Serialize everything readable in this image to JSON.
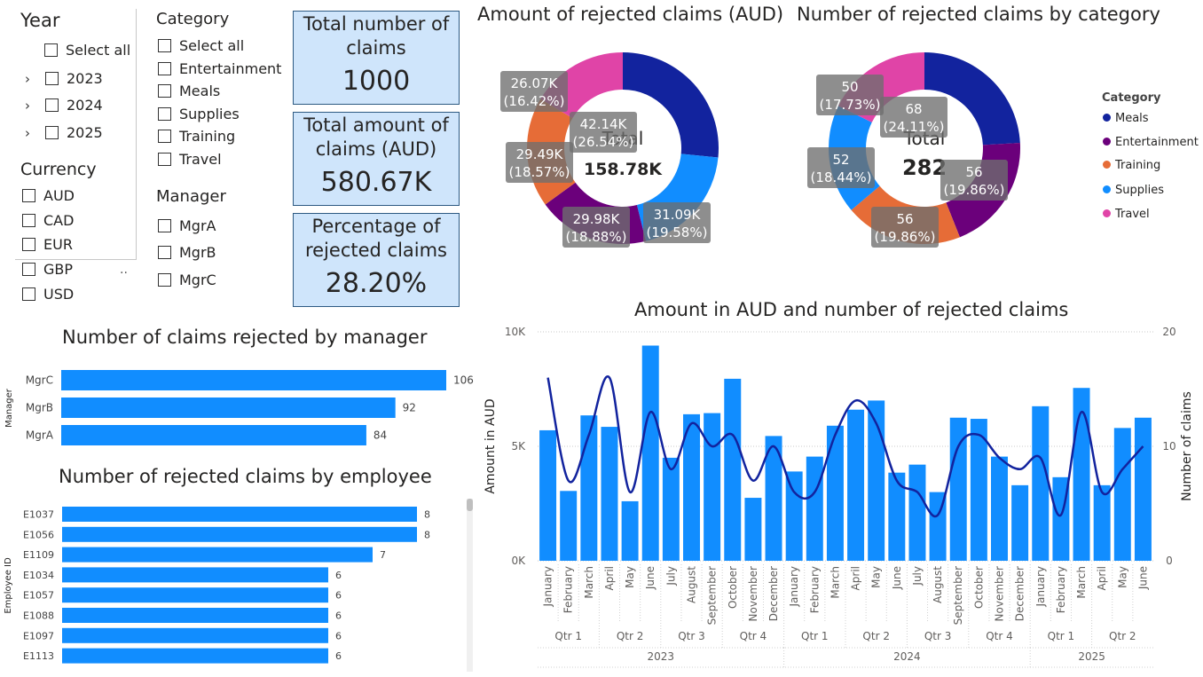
{
  "year_slicer": {
    "title": "Year",
    "select_all": "Select all",
    "items": [
      "2023",
      "2024",
      "2025"
    ]
  },
  "currency_slicer": {
    "title": "Currency",
    "items": [
      "AUD",
      "CAD",
      "EUR",
      "GBP",
      "USD"
    ],
    "more": ".."
  },
  "category_slicer": {
    "title": "Category",
    "items": [
      "Select all",
      "Entertainment",
      "Meals",
      "Supplies",
      "Training",
      "Travel"
    ]
  },
  "manager_slicer": {
    "title": "Manager",
    "items": [
      "MgrA",
      "MgrB",
      "MgrC"
    ]
  },
  "cards": [
    {
      "title_1": "Total number of",
      "title_2": "claims",
      "value": "1000"
    },
    {
      "title_1": "Total amount of",
      "title_2": "claims (AUD)",
      "value": "580.67K"
    },
    {
      "title_1": "Percentage of",
      "title_2": "rejected claims",
      "value": "28.20%"
    }
  ],
  "colors": {
    "meals": "#12239e",
    "entertainment": "#6b007b",
    "training": "#e66c37",
    "supplies": "#118dff",
    "travel": "#e044a7",
    "bar": "#118dff",
    "line": "#12239e",
    "card_bg": "#cfe5fb",
    "card_border": "#2d5a82"
  },
  "chart_data": [
    {
      "type": "pie",
      "title": "Amount of rejected claims (AUD)",
      "center_label": "Total",
      "center_value": "158.78K",
      "labels": [
        "Meals",
        "Supplies",
        "Entertainment",
        "Training",
        "Travel"
      ],
      "values": [
        42.14,
        31.09,
        29.98,
        29.49,
        26.07
      ],
      "data_labels": [
        [
          "42.14K",
          "(26.54%)"
        ],
        [
          "31.09K",
          "(19.58%)"
        ],
        [
          "29.98K",
          "(18.88%)"
        ],
        [
          "29.49K",
          "(18.57%)"
        ],
        [
          "26.07K",
          "(16.42%)"
        ]
      ]
    },
    {
      "type": "pie",
      "title": "Number of rejected claims by category",
      "center_label": "Total",
      "center_value": "282",
      "labels": [
        "Meals",
        "Entertainment",
        "Training",
        "Supplies",
        "Travel"
      ],
      "values": [
        68,
        56,
        56,
        52,
        50
      ],
      "data_labels": [
        [
          "68",
          "(24.11%)"
        ],
        [
          "56",
          "(19.86%)"
        ],
        [
          "56",
          "(19.86%)"
        ],
        [
          "52",
          "(18.44%)"
        ],
        [
          "50",
          "(17.73%)"
        ]
      ],
      "legend_title": "Category",
      "legend": [
        "Meals",
        "Entertainment",
        "Training",
        "Supplies",
        "Travel"
      ]
    },
    {
      "type": "bar",
      "title": "Number of claims rejected by manager",
      "ylabel": "Manager",
      "categories": [
        "MgrC",
        "MgrB",
        "MgrA"
      ],
      "values": [
        106,
        92,
        84
      ]
    },
    {
      "type": "bar",
      "title": "Number of rejected claims by employee",
      "ylabel": "Employee ID",
      "categories": [
        "E1037",
        "E1056",
        "E1109",
        "E1034",
        "E1057",
        "E1088",
        "E1097",
        "E1113"
      ],
      "values": [
        8,
        8,
        7,
        6,
        6,
        6,
        6,
        6
      ]
    },
    {
      "type": "bar",
      "title": "Amount in AUD and number of rejected claims",
      "ylabel": "Amount in AUD",
      "y2label": "Number of claims",
      "ylim": [
        0,
        10000
      ],
      "y2lim": [
        0,
        20
      ],
      "yticks": [
        "0K",
        "5K",
        "10K"
      ],
      "y2ticks": [
        "0",
        "10",
        "20"
      ],
      "categories": [
        "January",
        "February",
        "March",
        "April",
        "May",
        "June",
        "July",
        "August",
        "September",
        "October",
        "November",
        "December",
        "January",
        "February",
        "March",
        "April",
        "May",
        "June",
        "July",
        "August",
        "September",
        "October",
        "November",
        "December",
        "January",
        "February",
        "March",
        "April",
        "May",
        "June"
      ],
      "quarters": [
        {
          "label": "Qtr 1",
          "span": 3
        },
        {
          "label": "Qtr 2",
          "span": 3
        },
        {
          "label": "Qtr 3",
          "span": 3
        },
        {
          "label": "Qtr 4",
          "span": 3
        },
        {
          "label": "Qtr 1",
          "span": 3
        },
        {
          "label": "Qtr 2",
          "span": 3
        },
        {
          "label": "Qtr 3",
          "span": 3
        },
        {
          "label": "Qtr 4",
          "span": 3
        },
        {
          "label": "Qtr 1",
          "span": 3
        },
        {
          "label": "Qtr 2",
          "span": 3
        }
      ],
      "years": [
        {
          "label": "2023",
          "span": 12
        },
        {
          "label": "2024",
          "span": 12
        },
        {
          "label": "2025",
          "span": 6
        }
      ],
      "series": [
        {
          "name": "Amount in AUD",
          "type": "bar",
          "values": [
            5700,
            3050,
            6350,
            5850,
            2600,
            9400,
            4500,
            6400,
            6450,
            7950,
            2750,
            5450,
            3900,
            4550,
            5900,
            6600,
            7000,
            3850,
            4200,
            3000,
            6250,
            6200,
            4550,
            3300,
            6750,
            3650,
            7550,
            3300,
            5800,
            6250
          ]
        },
        {
          "name": "Number of claims",
          "type": "line",
          "values": [
            16,
            7,
            11,
            16,
            6,
            13,
            8,
            12,
            10,
            11,
            7,
            10,
            6,
            6,
            11,
            14,
            12,
            7,
            6,
            4,
            10,
            11,
            9,
            8,
            9,
            4,
            13,
            6,
            8,
            10
          ]
        }
      ]
    }
  ]
}
